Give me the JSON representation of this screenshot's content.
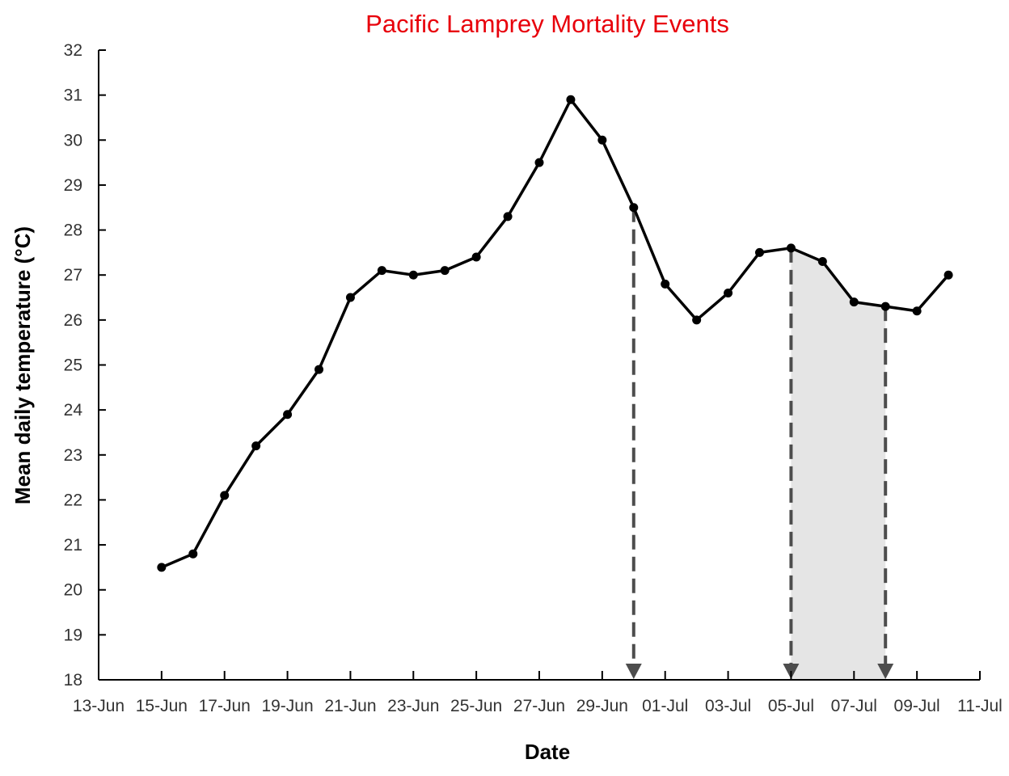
{
  "chart_data": {
    "type": "line",
    "title": "Pacific Lamprey Mortality Events",
    "xlabel": "Date",
    "ylabel": "Mean daily temperature (°C)",
    "ylim": [
      18,
      32
    ],
    "yticks": [
      "18",
      "19",
      "20",
      "21",
      "22",
      "23",
      "24",
      "25",
      "26",
      "27",
      "28",
      "29",
      "30",
      "31",
      "32"
    ],
    "xlim": [
      "13-Jun",
      "11-Jul"
    ],
    "xticks": [
      "13-Jun",
      "15-Jun",
      "17-Jun",
      "19-Jun",
      "21-Jun",
      "23-Jun",
      "25-Jun",
      "27-Jun",
      "29-Jun",
      "01-Jul",
      "03-Jul",
      "05-Jul",
      "07-Jul",
      "09-Jul",
      "11-Jul"
    ],
    "grid": false,
    "series": [
      {
        "color": "#000000",
        "x": [
          "15-Jun",
          "16-Jun",
          "17-Jun",
          "18-Jun",
          "19-Jun",
          "20-Jun",
          "21-Jun",
          "22-Jun",
          "23-Jun",
          "24-Jun",
          "25-Jun",
          "26-Jun",
          "27-Jun",
          "28-Jun",
          "29-Jun",
          "30-Jun",
          "01-Jul",
          "02-Jul",
          "03-Jul",
          "04-Jul",
          "05-Jul",
          "06-Jul",
          "07-Jul",
          "08-Jul",
          "09-Jul",
          "10-Jul"
        ],
        "values": [
          20.5,
          20.8,
          22.1,
          23.2,
          23.9,
          24.9,
          26.5,
          27.1,
          27.0,
          27.1,
          27.4,
          28.3,
          29.5,
          30.9,
          30.0,
          28.5,
          26.8,
          26.0,
          26.6,
          27.5,
          27.6,
          27.3,
          26.4,
          26.3,
          26.2,
          27.0
        ]
      }
    ],
    "mortality_events": [
      "30-Jun",
      "05-Jul",
      "08-Jul"
    ],
    "shaded_period": [
      "05-Jul",
      "08-Jul"
    ],
    "event_marker_color": "#4d4d4d",
    "shade_color": "#e5e5e5"
  }
}
